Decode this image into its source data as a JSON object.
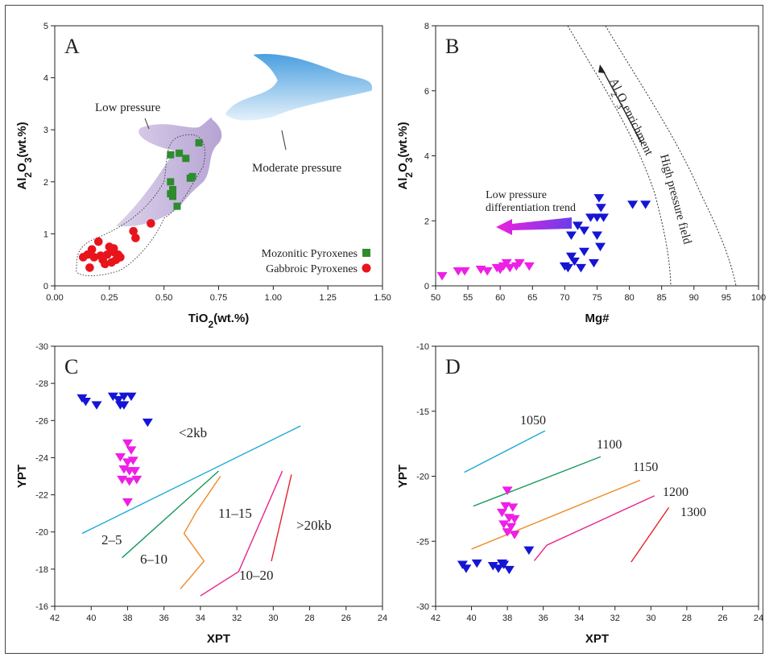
{
  "chart_data": [
    {
      "panel": "A",
      "type": "scatter",
      "xlabel": "TiO2(wt.%)",
      "ylabel": "Al2O3(wt.%)",
      "xlim": [
        0,
        1.5
      ],
      "ylim": [
        0,
        5
      ],
      "xticks": [
        "0.00",
        "0.25",
        "0.50",
        "0.75",
        "1.00",
        "1.25",
        "1.50"
      ],
      "yticks": [
        "0",
        "1",
        "2",
        "3",
        "4",
        "5"
      ],
      "annotations": [
        "Low pressure",
        "Moderate pressure"
      ],
      "legend_position": "bottom-right",
      "series": [
        {
          "name": "Mozonitic Pyroxenes",
          "marker": "square",
          "color": "#2e8b2e",
          "points": [
            [
              0.53,
              2.52
            ],
            [
              0.57,
              2.55
            ],
            [
              0.6,
              2.45
            ],
            [
              0.66,
              2.75
            ],
            [
              0.53,
              2.0
            ],
            [
              0.63,
              2.1
            ],
            [
              0.62,
              2.07
            ],
            [
              0.54,
              1.85
            ],
            [
              0.53,
              1.77
            ],
            [
              0.54,
              1.72
            ],
            [
              0.56,
              1.53
            ]
          ]
        },
        {
          "name": "Gabbroic Pyroxenes",
          "marker": "circle",
          "color": "#e8141b",
          "points": [
            [
              0.13,
              0.55
            ],
            [
              0.15,
              0.6
            ],
            [
              0.17,
              0.7
            ],
            [
              0.2,
              0.85
            ],
            [
              0.24,
              0.6
            ],
            [
              0.25,
              0.75
            ],
            [
              0.27,
              0.65
            ],
            [
              0.29,
              0.6
            ],
            [
              0.28,
              0.5
            ],
            [
              0.26,
              0.45
            ],
            [
              0.22,
              0.5
            ],
            [
              0.18,
              0.55
            ],
            [
              0.3,
              0.55
            ],
            [
              0.36,
              1.05
            ],
            [
              0.37,
              0.92
            ],
            [
              0.44,
              1.2
            ],
            [
              0.16,
              0.35
            ],
            [
              0.23,
              0.42
            ],
            [
              0.21,
              0.58
            ],
            [
              0.27,
              0.72
            ]
          ]
        }
      ]
    },
    {
      "panel": "B",
      "type": "scatter",
      "xlabel": "Mg#",
      "ylabel": "Al2O3(wt.%)",
      "xlim": [
        50,
        100
      ],
      "ylim": [
        0,
        8
      ],
      "xticks": [
        "50",
        "55",
        "60",
        "65",
        "70",
        "75",
        "80",
        "85",
        "90",
        "95",
        "100"
      ],
      "yticks": [
        "0",
        "2",
        "4",
        "6",
        "8"
      ],
      "annotations": [
        "Al2O3enrichment",
        "High pressure field",
        "Low pressure differentiation trend"
      ],
      "series": [
        {
          "name": "blue",
          "marker": "triangle-down",
          "color": "#1515d4",
          "points": [
            [
              75.3,
              2.7
            ],
            [
              75.6,
              2.4
            ],
            [
              80.5,
              2.5
            ],
            [
              82.5,
              2.5
            ],
            [
              74,
              2.1
            ],
            [
              75,
              2.1
            ],
            [
              76,
              2.1
            ],
            [
              72,
              1.85
            ],
            [
              73,
              1.7
            ],
            [
              71,
              1.55
            ],
            [
              75,
              1.55
            ],
            [
              71,
              0.9
            ],
            [
              71.5,
              0.75
            ],
            [
              73,
              1.05
            ],
            [
              75.5,
              1.2
            ],
            [
              70,
              0.6
            ],
            [
              70.5,
              0.55
            ],
            [
              74.5,
              0.7
            ],
            [
              72.5,
              0.55
            ]
          ]
        },
        {
          "name": "magenta",
          "marker": "triangle-down",
          "color": "#ee1fe6",
          "points": [
            [
              51,
              0.3
            ],
            [
              53.5,
              0.45
            ],
            [
              54.5,
              0.45
            ],
            [
              57,
              0.5
            ],
            [
              58,
              0.45
            ],
            [
              59.5,
              0.55
            ],
            [
              60.5,
              0.6
            ],
            [
              61,
              0.7
            ],
            [
              61.5,
              0.55
            ],
            [
              62.5,
              0.6
            ],
            [
              63,
              0.7
            ],
            [
              64.5,
              0.6
            ],
            [
              60,
              0.5
            ]
          ]
        }
      ]
    },
    {
      "panel": "C",
      "type": "scatter",
      "xlabel": "XPT",
      "ylabel": "YPT",
      "xlim": [
        42,
        24
      ],
      "ylim": [
        -15,
        -30
      ],
      "xticks": [
        "42",
        "40",
        "38",
        "36",
        "34",
        "32",
        "30",
        "28",
        "26",
        "24"
      ],
      "yticks": [
        "-16",
        "-18",
        "-20",
        "-22",
        "-24",
        "-26",
        "-28",
        "-30"
      ],
      "annotations": [
        "<2kb",
        "2–5",
        "6–10",
        "11–15",
        "10–20",
        ">20kb"
      ],
      "series": [
        {
          "name": "blue",
          "marker": "triangle-down",
          "color": "#1515d4",
          "points": [
            [
              40.5,
              -27
            ],
            [
              40.3,
              -26.8
            ],
            [
              39.7,
              -26.6
            ],
            [
              38.8,
              -27.1
            ],
            [
              38.5,
              -26.9
            ],
            [
              38.2,
              -27.1
            ],
            [
              37.8,
              -27.1
            ],
            [
              38.2,
              -26.6
            ],
            [
              38.4,
              -26.6
            ],
            [
              36.9,
              -25.6
            ]
          ]
        },
        {
          "name": "magenta",
          "marker": "triangle-down",
          "color": "#ee1fe6",
          "points": [
            [
              38.0,
              -24.4
            ],
            [
              37.8,
              -24.0
            ],
            [
              38.4,
              -23.6
            ],
            [
              38.0,
              -23.3
            ],
            [
              37.7,
              -23.4
            ],
            [
              38.2,
              -22.9
            ],
            [
              37.9,
              -22.8
            ],
            [
              37.6,
              -22.8
            ],
            [
              38.3,
              -22.3
            ],
            [
              37.9,
              -22.2
            ],
            [
              37.5,
              -22.3
            ],
            [
              38.0,
              -21.0
            ]
          ]
        }
      ],
      "lines": [
        {
          "label": "<2kb",
          "color": "#1eaad8",
          "points": [
            [
              40.5,
              -19.2
            ],
            [
              28.5,
              -25.4
            ]
          ]
        },
        {
          "label": "2–5",
          "color": "#169a5a",
          "points": [
            [
              38.3,
              -17.8
            ],
            [
              33.0,
              -22.8
            ]
          ]
        },
        {
          "label": "6–10",
          "color": "#ee8a26",
          "points": [
            [
              35.1,
              -16.0
            ],
            [
              33.8,
              -17.6
            ],
            [
              34.9,
              -19.2
            ],
            [
              34.2,
              -20.5
            ],
            [
              32.9,
              -22.5
            ]
          ]
        },
        {
          "label": "10–20",
          "color": "#e8248a",
          "points": [
            [
              34.0,
              -15.6
            ],
            [
              31.9,
              -17.0
            ],
            [
              29.5,
              -22.8
            ]
          ]
        },
        {
          "label": ">20kb",
          "color": "#e2232b",
          "points": [
            [
              30.1,
              -17.6
            ],
            [
              29.0,
              -22.6
            ]
          ]
        }
      ]
    },
    {
      "panel": "D",
      "type": "scatter",
      "xlabel": "XPT",
      "ylabel": "YPT",
      "xlim": [
        42,
        24
      ],
      "ylim": [
        -30,
        -10
      ],
      "xticks": [
        "42",
        "40",
        "38",
        "36",
        "34",
        "32",
        "30",
        "28",
        "26",
        "24"
      ],
      "yticks": [
        "-30",
        "-25",
        "-20",
        "-15",
        "-10"
      ],
      "annotations": [
        "1050",
        "1100",
        "1150",
        "1200",
        "1300"
      ],
      "series": [
        {
          "name": "blue",
          "marker": "triangle-down",
          "color": "#1515d4",
          "points": [
            [
              40.5,
              -26.8
            ],
            [
              40.3,
              -27.1
            ],
            [
              39.7,
              -26.7
            ],
            [
              38.8,
              -26.9
            ],
            [
              38.5,
              -27.1
            ],
            [
              38.2,
              -26.8
            ],
            [
              37.9,
              -27.2
            ],
            [
              38.3,
              -26.7
            ],
            [
              36.8,
              -25.7
            ]
          ]
        },
        {
          "name": "magenta",
          "marker": "triangle-down",
          "color": "#ee1fe6",
          "points": [
            [
              38.0,
              -21.1
            ],
            [
              38.1,
              -22.3
            ],
            [
              37.7,
              -22.4
            ],
            [
              38.3,
              -22.8
            ],
            [
              37.9,
              -23.2
            ],
            [
              37.6,
              -23.3
            ],
            [
              38.2,
              -23.7
            ],
            [
              37.8,
              -23.9
            ],
            [
              38.0,
              -24.3
            ],
            [
              37.6,
              -24.5
            ]
          ]
        }
      ],
      "lines": [
        {
          "label": "1050",
          "color": "#1eaad8",
          "points": [
            [
              40.4,
              -19.7
            ],
            [
              35.9,
              -16.5
            ]
          ]
        },
        {
          "label": "1100",
          "color": "#169a5a",
          "points": [
            [
              39.9,
              -22.3
            ],
            [
              32.8,
              -18.5
            ]
          ]
        },
        {
          "label": "1150",
          "color": "#ee8a26",
          "points": [
            [
              40.0,
              -25.6
            ],
            [
              30.6,
              -20.3
            ]
          ]
        },
        {
          "label": "1200",
          "color": "#e8248a",
          "points": [
            [
              36.5,
              -26.5
            ],
            [
              35.8,
              -25.3
            ],
            [
              29.8,
              -21.5
            ]
          ]
        },
        {
          "label": "1300",
          "color": "#e2232b",
          "points": [
            [
              31.1,
              -26.6
            ],
            [
              29.0,
              -22.4
            ]
          ]
        }
      ]
    }
  ]
}
